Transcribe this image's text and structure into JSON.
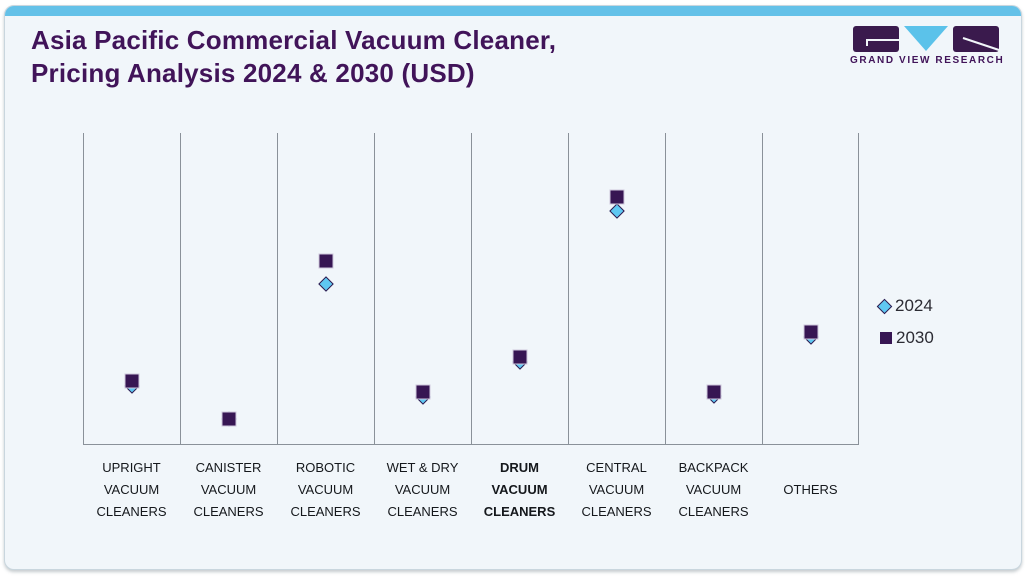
{
  "header": {
    "title": "Asia Pacific Commercial Vacuum Cleaner,\nPricing Analysis 2024 & 2030 (USD)"
  },
  "logo": {
    "text": "GRAND VIEW RESEARCH"
  },
  "colors": {
    "accent_blue_bar": "#64c1e8",
    "brand_purple": "#411459",
    "marker_purple_2030": "#371653",
    "marker_blue_2024": "#5fc8f2",
    "card_background": "#f1f6fa",
    "gridline_gray": "#8a9199"
  },
  "chart_data": {
    "type": "scatter",
    "title": "Asia Pacific Commercial Vacuum Cleaner, Pricing Analysis 2024 & 2030 (USD)",
    "x_axis": "product category",
    "y_axis": "price (USD) — axis unlabeled, no numeric ticks shown",
    "grid": "vertical column separators only",
    "legend_position": "right",
    "categories": [
      {
        "label": "UPRIGHT\nVACUUM\nCLEANERS",
        "bold": false
      },
      {
        "label": "CANISTER\nVACUUM\nCLEANERS",
        "bold": false
      },
      {
        "label": "ROBOTIC\nVACUUM\nCLEANERS",
        "bold": false
      },
      {
        "label": "WET & DRY\nVACUUM\nCLEANERS",
        "bold": false
      },
      {
        "label": "DRUM\nVACUUM\nCLEANERS",
        "bold": true
      },
      {
        "label": "CENTRAL\nVACUUM\nCLEANERS",
        "bold": false
      },
      {
        "label": "BACKPACK\nVACUUM\nCLEANERS",
        "bold": false
      },
      {
        "label": "OTHERS",
        "bold": false
      }
    ],
    "series": [
      {
        "name": "2024",
        "marker": "diamond",
        "color": "#5fc8f2",
        "values": [
          0.185,
          0.08,
          0.51,
          0.15,
          0.262,
          0.744,
          0.152,
          0.342
        ]
      },
      {
        "name": "2030",
        "marker": "square",
        "color": "#371653",
        "values": [
          0.201,
          0.08,
          0.585,
          0.166,
          0.278,
          0.789,
          0.166,
          0.358
        ]
      }
    ],
    "value_note": "No numeric y-axis is rendered; values are relative marker heights as fraction of plot height (0 = baseline axis, 1 = plot top), read from marker pixel positions. 2024 diamonds sit just below / behind 2030 squares in most categories."
  }
}
